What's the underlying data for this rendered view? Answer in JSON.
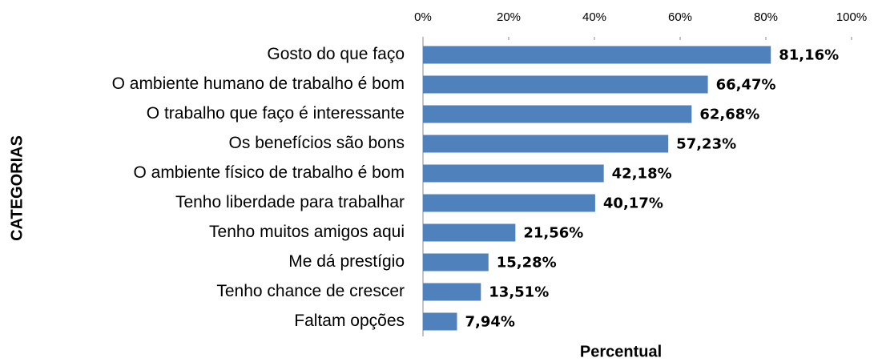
{
  "chart_data": {
    "type": "hbar",
    "x_label": "Percentual",
    "y_label": "CATEGORIAS",
    "categories": [
      "Gosto do que faço",
      "O ambiente humano de trabalho é bom",
      "O trabalho que faço é interessante",
      "Os benefícios são bons",
      "O ambiente físico de trabalho é bom",
      "Tenho liberdade para trabalhar",
      "Tenho muitos amigos aqui",
      "Me dá prestígio",
      "Tenho chance de crescer",
      "Faltam opções"
    ],
    "values": [
      81.16,
      66.47,
      62.68,
      57.23,
      42.18,
      40.17,
      21.56,
      15.28,
      13.51,
      7.94
    ],
    "value_labels": [
      "81,16%",
      "66,47%",
      "62,68%",
      "57,23%",
      "42,18%",
      "40,17%",
      "21,56%",
      "15,28%",
      "13,51%",
      "7,94%"
    ],
    "color": "#4f81bd",
    "xlim": [
      0,
      100
    ],
    "xticks": [
      {
        "value": 0,
        "label": "0%"
      },
      {
        "value": 20,
        "label": "20%"
      },
      {
        "value": 40,
        "label": "40%"
      },
      {
        "value": 60,
        "label": "60%"
      },
      {
        "value": 80,
        "label": "80%"
      },
      {
        "value": 100,
        "label": "100%"
      }
    ],
    "grid": false
  }
}
